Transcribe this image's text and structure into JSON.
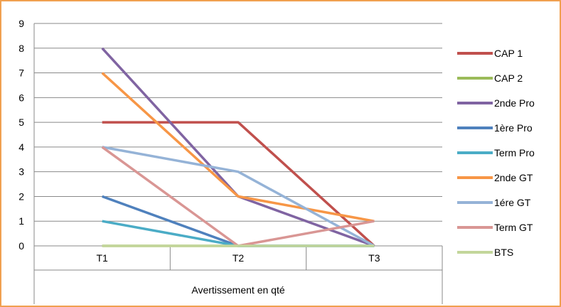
{
  "chart_data": {
    "type": "line",
    "categories": [
      "T1",
      "T2",
      "T3"
    ],
    "xlabel": "Avertissement en qté",
    "ylim": [
      0,
      9
    ],
    "yticks": [
      0,
      1,
      2,
      3,
      4,
      5,
      6,
      7,
      8,
      9
    ],
    "grid": "horizontal",
    "legend_position": "right",
    "series": [
      {
        "name": "CAP 1",
        "color": "#c0504d",
        "values": [
          5,
          5,
          0
        ]
      },
      {
        "name": "CAP 2",
        "color": "#9bbb59",
        "values": [
          0,
          0,
          0
        ]
      },
      {
        "name": "2nde Pro",
        "color": "#8064a2",
        "values": [
          8,
          2,
          0
        ]
      },
      {
        "name": "1ère Pro",
        "color": "#4f81bd",
        "values": [
          2,
          0,
          0
        ]
      },
      {
        "name": "Term Pro",
        "color": "#4bacc6",
        "values": [
          1,
          0,
          0
        ]
      },
      {
        "name": "2nde GT",
        "color": "#f79646",
        "values": [
          7,
          2,
          1
        ]
      },
      {
        "name": "1ére GT",
        "color": "#95b3d7",
        "values": [
          4,
          3,
          0
        ]
      },
      {
        "name": "Term GT",
        "color": "#d99694",
        "values": [
          4,
          0,
          1
        ]
      },
      {
        "name": "BTS",
        "color": "#c3d69b",
        "values": [
          0,
          0,
          0
        ]
      }
    ]
  }
}
